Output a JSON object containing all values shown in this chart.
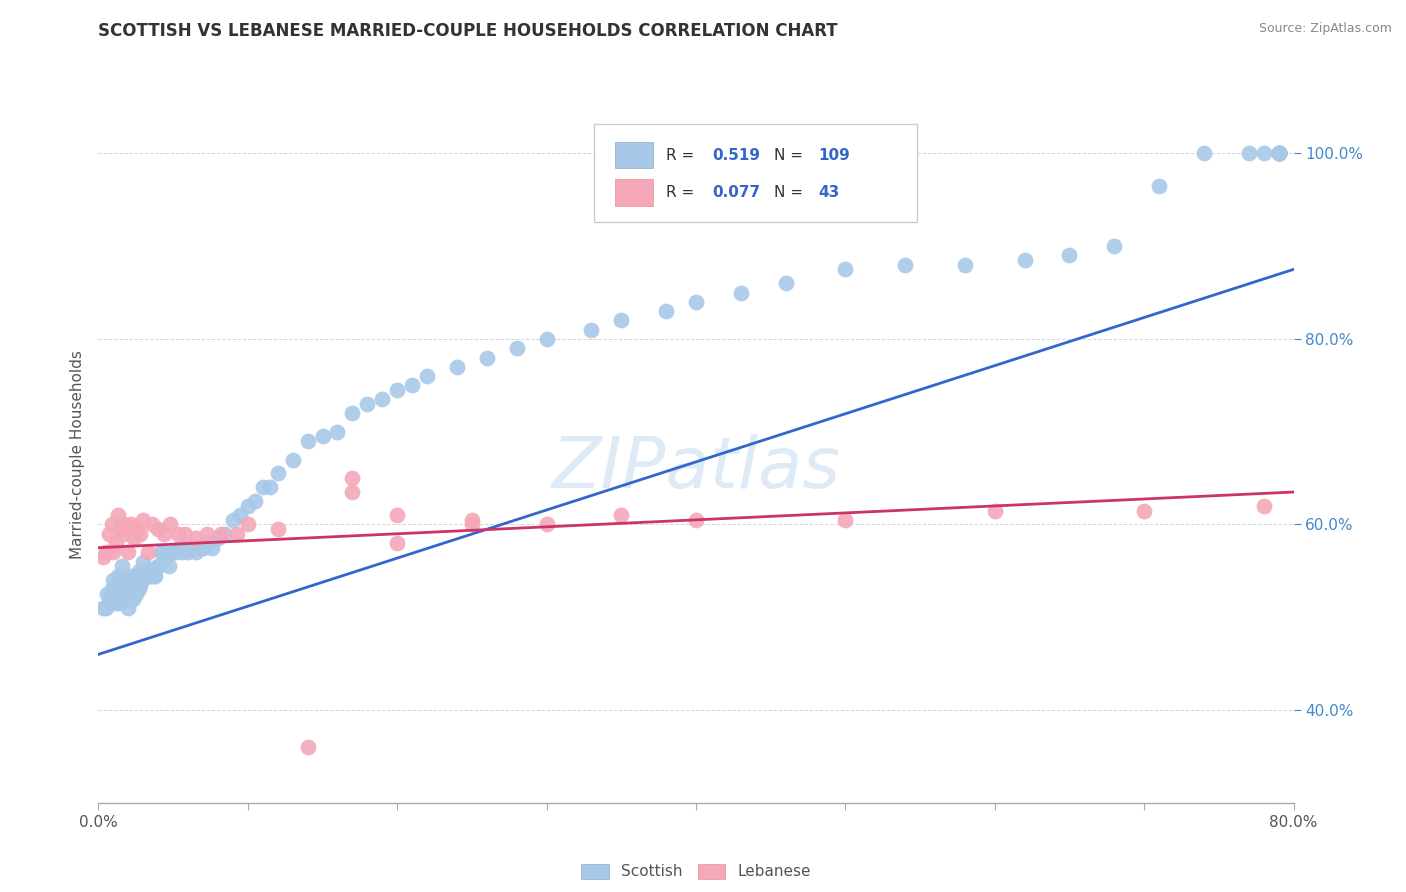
{
  "title": "SCOTTISH VS LEBANESE MARRIED-COUPLE HOUSEHOLDS CORRELATION CHART",
  "source": "Source: ZipAtlas.com",
  "ylabel": "Married-couple Households",
  "R_scottish": "0.519",
  "N_scottish": "109",
  "R_lebanese": "0.077",
  "N_lebanese": "43",
  "scottish_color": "#a8c8e8",
  "lebanese_color": "#f4a8b8",
  "scottish_line_color": "#3366cc",
  "lebanese_line_color": "#cc3366",
  "background_color": "#ffffff",
  "watermark_color": "#c8ddf0",
  "xlim": [
    0.0,
    0.8
  ],
  "ylim": [
    0.3,
    1.05
  ],
  "yticks": [
    0.4,
    0.6,
    0.8,
    1.0
  ],
  "scottish_line_x0": 0.0,
  "scottish_line_x1": 0.8,
  "scottish_line_y0": 0.46,
  "scottish_line_y1": 0.875,
  "lebanese_line_x0": 0.0,
  "lebanese_line_x1": 0.8,
  "lebanese_line_y0": 0.575,
  "lebanese_line_y1": 0.635,
  "scottish_x": [
    0.003,
    0.005,
    0.006,
    0.007,
    0.008,
    0.009,
    0.01,
    0.01,
    0.011,
    0.012,
    0.013,
    0.013,
    0.014,
    0.015,
    0.015,
    0.016,
    0.016,
    0.017,
    0.018,
    0.018,
    0.019,
    0.02,
    0.02,
    0.021,
    0.022,
    0.022,
    0.023,
    0.024,
    0.025,
    0.025,
    0.026,
    0.027,
    0.027,
    0.028,
    0.029,
    0.03,
    0.03,
    0.032,
    0.033,
    0.034,
    0.035,
    0.036,
    0.037,
    0.038,
    0.04,
    0.04,
    0.042,
    0.043,
    0.045,
    0.047,
    0.05,
    0.052,
    0.054,
    0.056,
    0.058,
    0.06,
    0.063,
    0.065,
    0.068,
    0.07,
    0.073,
    0.076,
    0.08,
    0.085,
    0.09,
    0.095,
    0.1,
    0.105,
    0.11,
    0.115,
    0.12,
    0.13,
    0.14,
    0.15,
    0.16,
    0.17,
    0.18,
    0.19,
    0.2,
    0.21,
    0.22,
    0.24,
    0.26,
    0.28,
    0.3,
    0.33,
    0.35,
    0.38,
    0.4,
    0.43,
    0.46,
    0.5,
    0.54,
    0.58,
    0.62,
    0.65,
    0.68,
    0.71,
    0.74,
    0.77,
    0.78,
    0.79,
    0.79,
    0.79,
    0.79,
    0.79,
    0.79,
    0.79,
    0.79
  ],
  "scottish_y": [
    0.51,
    0.51,
    0.525,
    0.515,
    0.52,
    0.53,
    0.52,
    0.54,
    0.515,
    0.52,
    0.53,
    0.545,
    0.515,
    0.52,
    0.545,
    0.525,
    0.555,
    0.52,
    0.525,
    0.54,
    0.52,
    0.51,
    0.53,
    0.52,
    0.525,
    0.545,
    0.52,
    0.535,
    0.525,
    0.545,
    0.535,
    0.53,
    0.55,
    0.535,
    0.54,
    0.545,
    0.56,
    0.545,
    0.55,
    0.545,
    0.545,
    0.55,
    0.545,
    0.545,
    0.555,
    0.555,
    0.57,
    0.57,
    0.565,
    0.555,
    0.57,
    0.57,
    0.575,
    0.57,
    0.575,
    0.57,
    0.575,
    0.57,
    0.575,
    0.575,
    0.58,
    0.575,
    0.585,
    0.59,
    0.605,
    0.61,
    0.62,
    0.625,
    0.64,
    0.64,
    0.655,
    0.67,
    0.69,
    0.695,
    0.7,
    0.72,
    0.73,
    0.735,
    0.745,
    0.75,
    0.76,
    0.77,
    0.78,
    0.79,
    0.8,
    0.81,
    0.82,
    0.83,
    0.84,
    0.85,
    0.86,
    0.875,
    0.88,
    0.88,
    0.885,
    0.89,
    0.9,
    0.965,
    1.0,
    1.0,
    1.0,
    1.0,
    1.0,
    1.0,
    1.0,
    1.0,
    1.0,
    1.0,
    1.0
  ],
  "lebanese_x": [
    0.003,
    0.005,
    0.007,
    0.009,
    0.01,
    0.012,
    0.013,
    0.015,
    0.017,
    0.018,
    0.02,
    0.022,
    0.024,
    0.026,
    0.028,
    0.03,
    0.033,
    0.036,
    0.04,
    0.044,
    0.048,
    0.053,
    0.058,
    0.065,
    0.073,
    0.082,
    0.093,
    0.1,
    0.12,
    0.14,
    0.17,
    0.2,
    0.25,
    0.3,
    0.35,
    0.4,
    0.5,
    0.6,
    0.7,
    0.78,
    0.17,
    0.2,
    0.25
  ],
  "lebanese_y": [
    0.565,
    0.57,
    0.59,
    0.6,
    0.57,
    0.58,
    0.61,
    0.595,
    0.59,
    0.6,
    0.57,
    0.6,
    0.585,
    0.595,
    0.59,
    0.605,
    0.57,
    0.6,
    0.595,
    0.59,
    0.6,
    0.59,
    0.59,
    0.585,
    0.59,
    0.59,
    0.59,
    0.6,
    0.595,
    0.36,
    0.635,
    0.58,
    0.605,
    0.6,
    0.61,
    0.605,
    0.605,
    0.615,
    0.615,
    0.62,
    0.65,
    0.61,
    0.6
  ]
}
